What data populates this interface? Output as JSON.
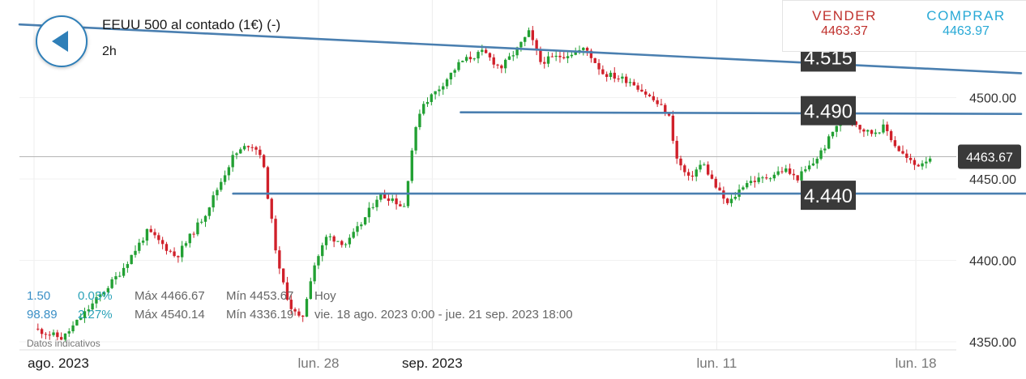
{
  "header": {
    "instrument": "EEUU 500 al contado (1€) (-)",
    "interval": "2h",
    "back_icon": "back-arrow-icon"
  },
  "trade": {
    "sell_label": "VENDER",
    "sell_price": "4463.37",
    "buy_label": "COMPRAR",
    "buy_price": "4463.97"
  },
  "stats": {
    "row1": {
      "change": "1.50",
      "pct": "0.03%",
      "max": "Máx 4466.67",
      "min": "Mín 4453.67",
      "period": "Hoy"
    },
    "row2": {
      "change": "98.89",
      "pct": "2.27%",
      "max": "Máx 4540.14",
      "min": "Mín 4336.19",
      "period": "vie. 18 ago. 2023 0:00 - jue. 21 sep. 2023 18:00"
    }
  },
  "disclaimer": "Datos indicativos",
  "colors": {
    "up": "#22a033",
    "down": "#d0202a",
    "trendline": "#4a7fb0",
    "price_badge": "#3a3a3a"
  },
  "chart_data": {
    "type": "candlestick",
    "current_price": "4463.67",
    "ylim": [
      4345,
      4560
    ],
    "y_ticks": [
      {
        "value": 4500,
        "label": "4500.00"
      },
      {
        "value": 4450,
        "label": "4450.00"
      },
      {
        "value": 4400,
        "label": "4400.00"
      },
      {
        "value": 4350,
        "label": "4350.00"
      }
    ],
    "x_ticks": [
      {
        "label": "ago. 2023",
        "day": 0
      },
      {
        "label": "lun. 28",
        "day": 10
      },
      {
        "label": "sep. 2023",
        "day": 14
      },
      {
        "label": "lun. 11",
        "day": 24
      },
      {
        "label": "lun. 18",
        "day": 31
      }
    ],
    "price_path": [
      [
        0,
        4358
      ],
      [
        1,
        4352
      ],
      [
        2,
        4372
      ],
      [
        3,
        4392
      ],
      [
        4,
        4418
      ],
      [
        5,
        4402
      ],
      [
        6,
        4428
      ],
      [
        7,
        4464
      ],
      [
        7.6,
        4472
      ],
      [
        8,
        4465
      ],
      [
        8.3,
        4430
      ],
      [
        8.6,
        4395
      ],
      [
        9,
        4372
      ],
      [
        9.4,
        4362
      ],
      [
        9.8,
        4395
      ],
      [
        10.3,
        4415
      ],
      [
        11,
        4410
      ],
      [
        11.6,
        4425
      ],
      [
        12.1,
        4440
      ],
      [
        12.6,
        4438
      ],
      [
        13,
        4432
      ],
      [
        13.3,
        4470
      ],
      [
        13.6,
        4495
      ],
      [
        14.2,
        4505
      ],
      [
        15,
        4522
      ],
      [
        15.8,
        4528
      ],
      [
        16.4,
        4518
      ],
      [
        17,
        4530
      ],
      [
        17.4,
        4540
      ],
      [
        17.8,
        4522
      ],
      [
        18.4,
        4525
      ],
      [
        19.4,
        4530
      ],
      [
        20,
        4515
      ],
      [
        21,
        4510
      ],
      [
        21.8,
        4498
      ],
      [
        22.3,
        4490
      ],
      [
        22.6,
        4462
      ],
      [
        23,
        4450
      ],
      [
        23.5,
        4460
      ],
      [
        24,
        4444
      ],
      [
        24.4,
        4434
      ],
      [
        25,
        4448
      ],
      [
        25.6,
        4450
      ],
      [
        26.4,
        4456
      ],
      [
        26.8,
        4450
      ],
      [
        27.4,
        4460
      ],
      [
        27.8,
        4470
      ],
      [
        28.3,
        4486
      ],
      [
        28.7,
        4488
      ],
      [
        29,
        4482
      ],
      [
        29.4,
        4478
      ],
      [
        29.9,
        4482
      ],
      [
        30.3,
        4470
      ],
      [
        30.7,
        4462
      ],
      [
        31,
        4458
      ],
      [
        31.5,
        4463.67
      ]
    ],
    "trendlines": [
      {
        "label": "",
        "start": [
          0,
          4545
        ],
        "end": [
          34.7,
          4515
        ]
      },
      {
        "label": "4.515",
        "start": [
          15,
          4515
        ],
        "end": [
          15,
          4515
        ]
      },
      {
        "label": "4.490",
        "start": [
          15,
          4491
        ],
        "end": [
          34.7,
          4490
        ]
      },
      {
        "label": "4.440",
        "start": [
          7,
          4441
        ],
        "end": [
          35.2,
          4441
        ]
      }
    ]
  }
}
